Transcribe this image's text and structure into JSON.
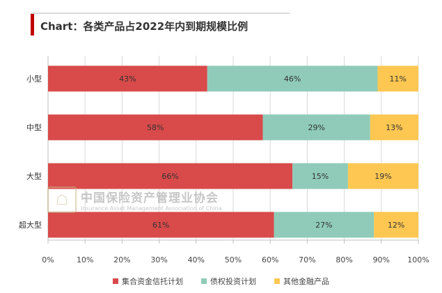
{
  "title": "Chart：各类产品占2022年内到期规模比例",
  "watermark": {
    "name_cn": "中国保险资产管理业协会",
    "name_en": "Insurance Asset Management Association of China",
    "logo_icon": "association-seal-icon"
  },
  "chart_data": {
    "type": "bar",
    "orientation": "horizontal",
    "stacked": true,
    "categories": [
      "小型",
      "中型",
      "大型",
      "超大型"
    ],
    "series": [
      {
        "name": "集合资金信托计划",
        "color": "#d94a4a",
        "values": [
          43,
          58,
          66,
          61
        ],
        "labels": [
          "43%",
          "58%",
          "66%",
          "61%"
        ]
      },
      {
        "name": "债权投资计划",
        "color": "#8fcbb8",
        "values": [
          46,
          29,
          15,
          27
        ],
        "labels": [
          "46%",
          "29%",
          "15%",
          "27%"
        ]
      },
      {
        "name": "其他金融产品",
        "color": "#fdc752",
        "values": [
          11,
          13,
          19,
          12
        ],
        "labels": [
          "11%",
          "13%",
          "19%",
          "12%"
        ]
      }
    ],
    "xlim": [
      0,
      100
    ],
    "xticks": [
      "0%",
      "10%",
      "20%",
      "30%",
      "40%",
      "50%",
      "60%",
      "70%",
      "80%",
      "90%",
      "100%"
    ],
    "grid": true,
    "legend_position": "bottom"
  }
}
